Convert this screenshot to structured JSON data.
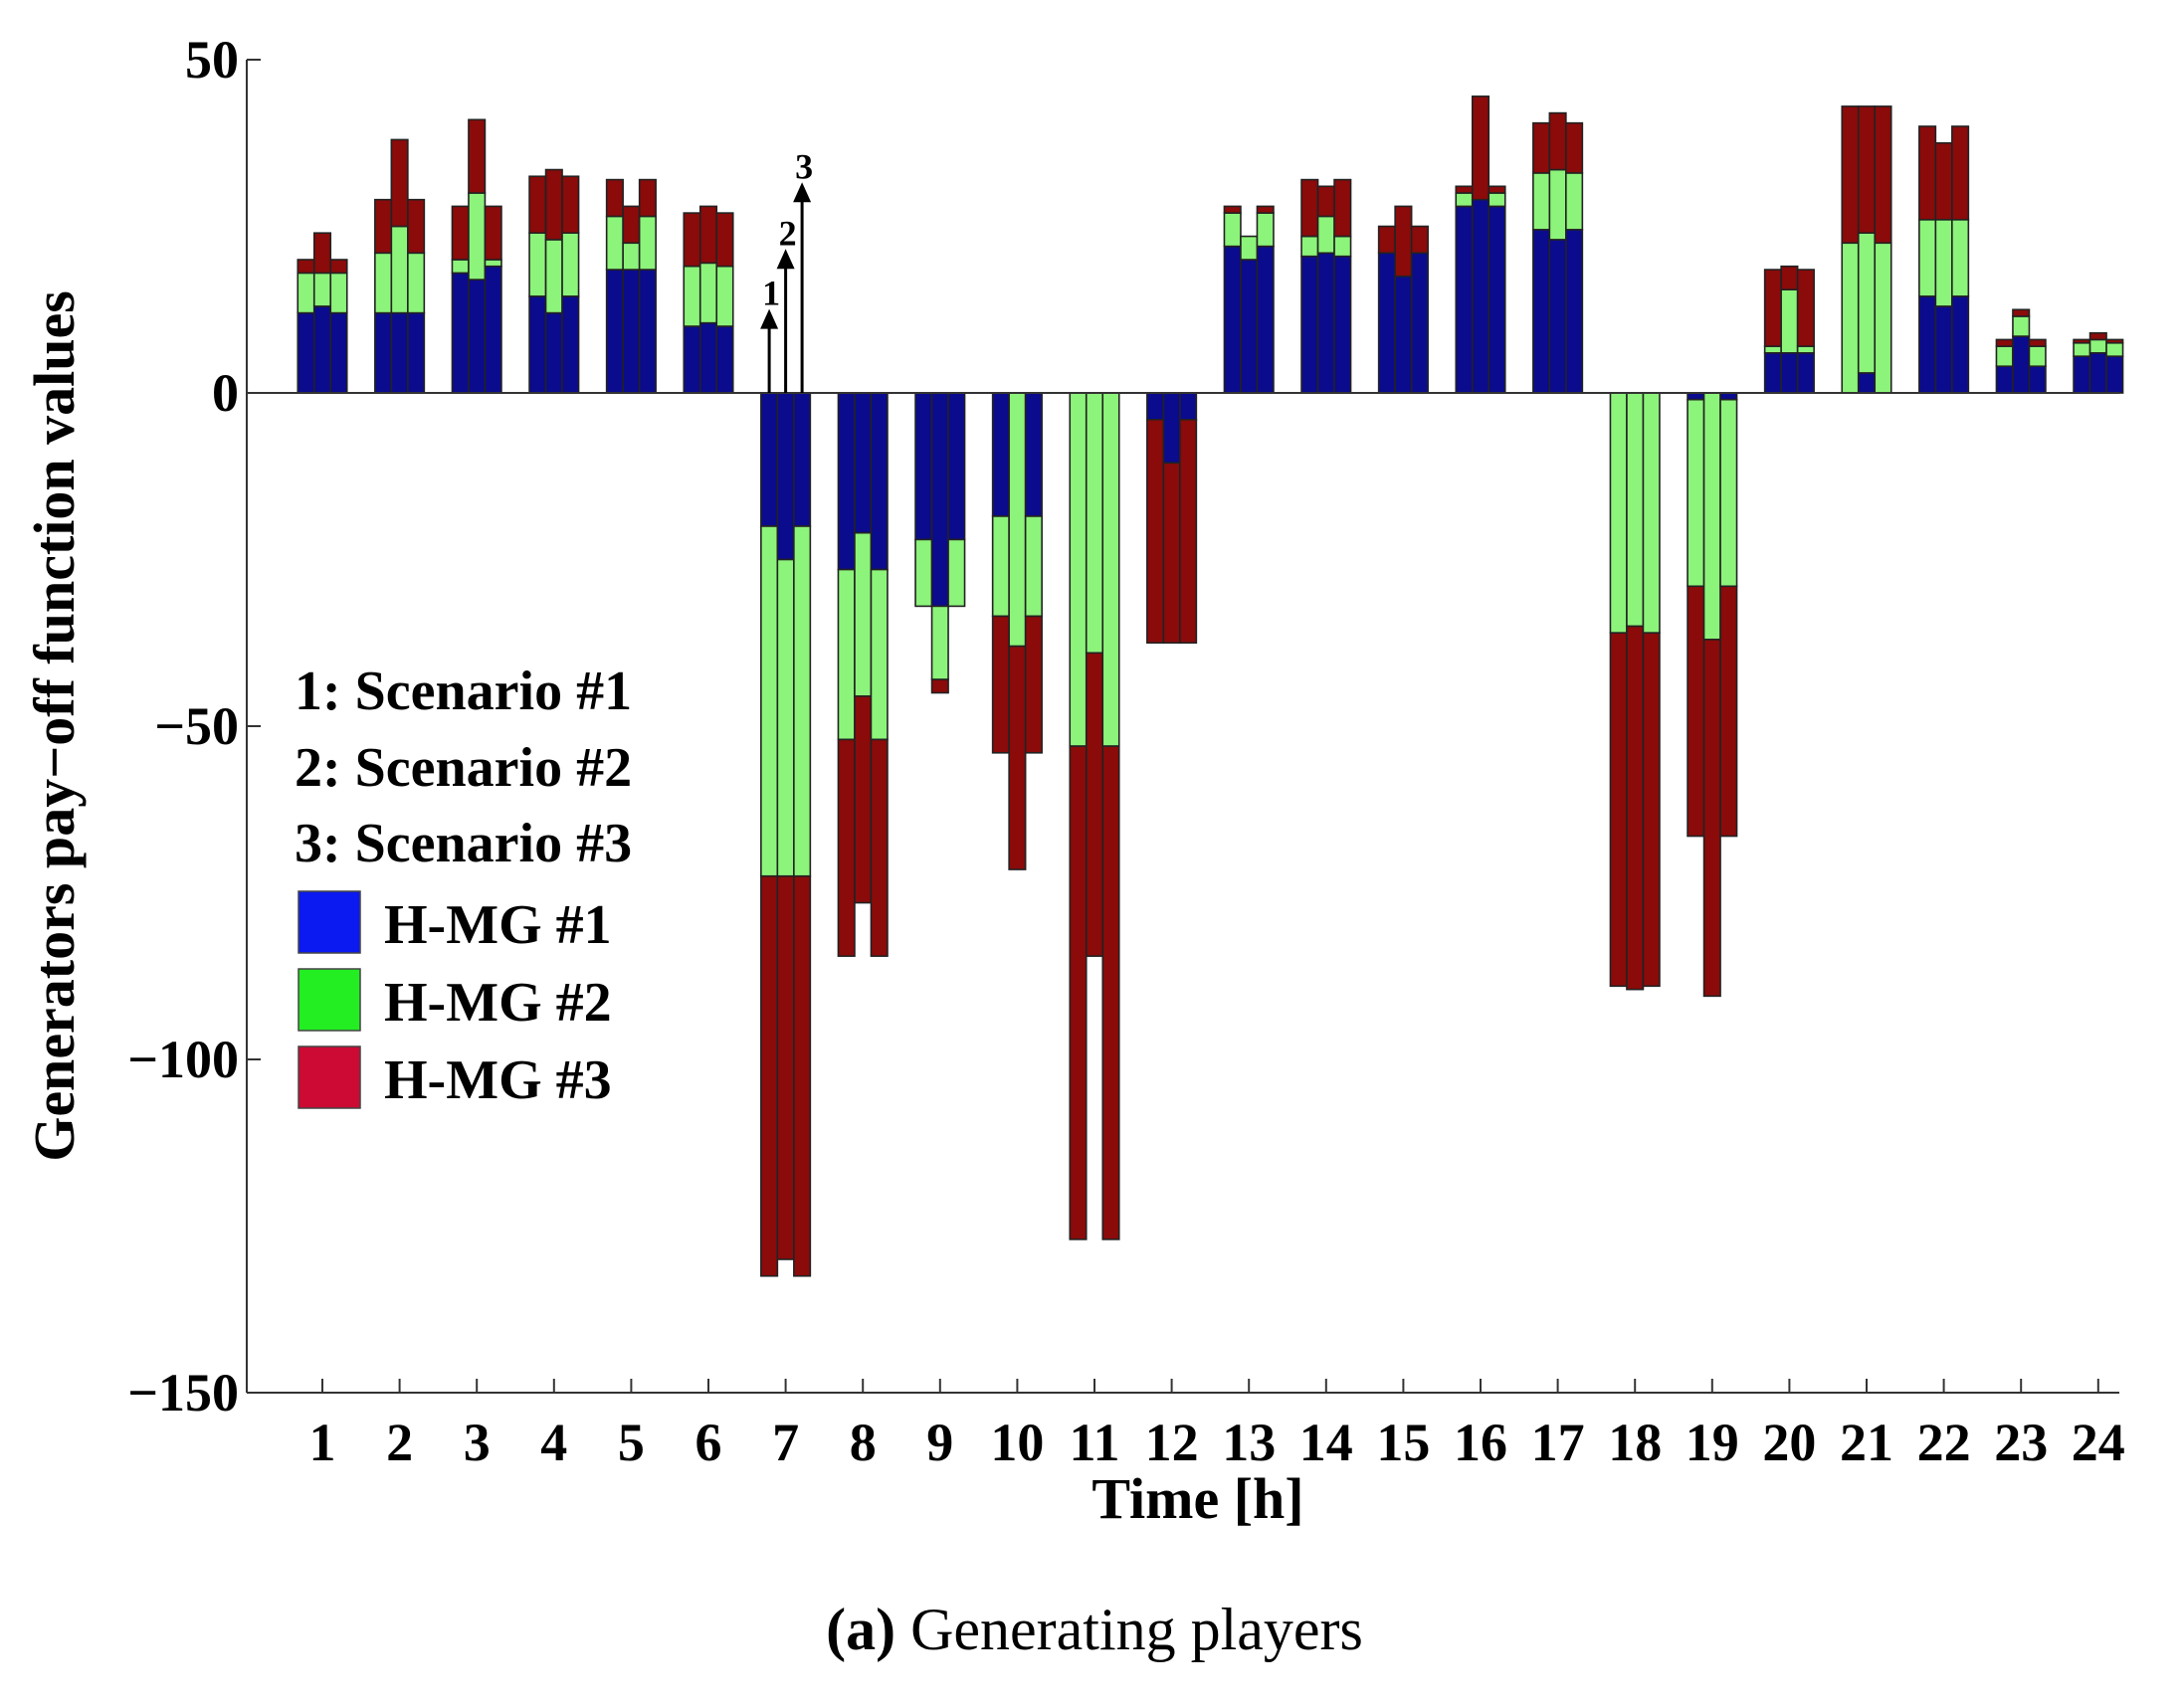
{
  "chart_data": {
    "type": "bar",
    "stacked": true,
    "title": "",
    "xlabel": "Time [h]",
    "ylabel": "Generators pay−off function values",
    "ylim": [
      -150,
      50
    ],
    "yticks": [
      50,
      0,
      -50,
      -100,
      -150
    ],
    "ytick_labels": [
      "50",
      "0",
      "−50",
      "−100",
      "−150"
    ],
    "categories": [
      "1",
      "2",
      "3",
      "4",
      "5",
      "6",
      "7",
      "8",
      "9",
      "10",
      "11",
      "12",
      "13",
      "14",
      "15",
      "16",
      "17",
      "18",
      "19",
      "20",
      "21",
      "22",
      "23",
      "24"
    ],
    "scenarios": [
      "Scenario #1",
      "Scenario #2",
      "Scenario #3"
    ],
    "scenario_legend": [
      "1: Scenario #1",
      "2: Scenario #2",
      "3: Scenario #3"
    ],
    "series_names": [
      "H-MG #1",
      "H-MG #2",
      "H-MG #3"
    ],
    "colors": {
      "H-MG #1": "#0b0b8e",
      "H-MG #2": "#8cf47a",
      "H-MG #3": "#8b0a0a"
    },
    "legend_swatch_colors": {
      "H-MG #1": "#0a1af0",
      "H-MG #2": "#22ee22",
      "H-MG #3": "#cc0a33"
    },
    "annotation_arrows": {
      "hour": "7",
      "labels": [
        "1",
        "2",
        "3"
      ],
      "values": [
        12,
        21,
        31
      ]
    },
    "data": [
      [
        [
          12,
          6,
          2
        ],
        [
          13,
          5,
          6
        ],
        [
          12,
          6,
          2
        ]
      ],
      [
        [
          12,
          9,
          8
        ],
        [
          12,
          13,
          13
        ],
        [
          12,
          9,
          8
        ]
      ],
      [
        [
          18,
          2,
          8
        ],
        [
          17,
          13,
          11
        ],
        [
          19,
          1,
          8
        ]
      ],
      [
        [
          14.5,
          9.5,
          8.5
        ],
        [
          12,
          11,
          10.5
        ],
        [
          14.5,
          9.5,
          8.5
        ]
      ],
      [
        [
          18.5,
          8,
          5.5
        ],
        [
          18.5,
          4,
          5.5
        ],
        [
          18.5,
          8,
          5.5
        ]
      ],
      [
        [
          10,
          9,
          8
        ],
        [
          10.5,
          9,
          8.5
        ],
        [
          10,
          9,
          8
        ]
      ],
      [
        [
          -20,
          -52.5,
          -60
        ],
        [
          -25,
          -47.5,
          -57.5
        ],
        [
          -20,
          -52.5,
          -60
        ]
      ],
      [
        [
          -26.5,
          -25.5,
          -32.5
        ],
        [
          -21,
          -24.5,
          -31
        ],
        [
          -26.5,
          -25.5,
          -32.5
        ]
      ],
      [
        [
          -22,
          -10,
          0
        ],
        [
          -32,
          -11,
          -2
        ],
        [
          -22,
          -10,
          0
        ]
      ],
      [
        [
          -18.5,
          -15,
          -20.5
        ],
        [
          0,
          -38,
          -33.5
        ],
        [
          -18.5,
          -15,
          -20.5
        ]
      ],
      [
        [
          0,
          -53,
          -74
        ],
        [
          0,
          -39,
          -45.5
        ],
        [
          0,
          -53,
          -74
        ]
      ],
      [
        [
          -4,
          0,
          -33.5
        ],
        [
          -10.5,
          0,
          -27
        ],
        [
          -4,
          0,
          -33.5
        ]
      ],
      [
        [
          22,
          5,
          1
        ],
        [
          20,
          3.5,
          0
        ],
        [
          22,
          5,
          1
        ]
      ],
      [
        [
          20.5,
          3,
          8.5
        ],
        [
          21,
          5.5,
          4.5
        ],
        [
          20.5,
          3,
          8.5
        ]
      ],
      [
        [
          21,
          0,
          4
        ],
        [
          17.5,
          0,
          10.5
        ],
        [
          21,
          0,
          4
        ]
      ],
      [
        [
          28,
          2,
          1
        ],
        [
          29,
          0,
          15.5
        ],
        [
          28,
          2,
          1
        ]
      ],
      [
        [
          24.5,
          8.5,
          7.5
        ],
        [
          23,
          10.5,
          8.5
        ],
        [
          24.5,
          8.5,
          7.5
        ]
      ],
      [
        [
          0,
          -36,
          -53
        ],
        [
          0,
          -35,
          -54.5
        ],
        [
          0,
          -36,
          -53
        ]
      ],
      [
        [
          -1,
          -28,
          -37.5
        ],
        [
          0,
          -37,
          -53.5
        ],
        [
          -1,
          -28,
          -37.5
        ]
      ],
      [
        [
          6,
          1,
          11.5
        ],
        [
          6,
          9.5,
          3.5
        ],
        [
          6,
          1,
          11.5
        ]
      ],
      [
        [
          0,
          22.5,
          20.5
        ],
        [
          3,
          21,
          19
        ],
        [
          0,
          22.5,
          20.5
        ]
      ],
      [
        [
          14.5,
          11.5,
          14
        ],
        [
          13,
          13,
          11.5
        ],
        [
          14.5,
          11.5,
          14
        ]
      ],
      [
        [
          4,
          3,
          1
        ],
        [
          8.5,
          3,
          1
        ],
        [
          4,
          3,
          1
        ]
      ],
      [
        [
          5.5,
          2,
          0.5
        ],
        [
          6,
          2,
          1
        ],
        [
          5.5,
          2,
          0.5
        ]
      ]
    ]
  },
  "caption": {
    "label": "(a)",
    "text": "Generating players"
  }
}
